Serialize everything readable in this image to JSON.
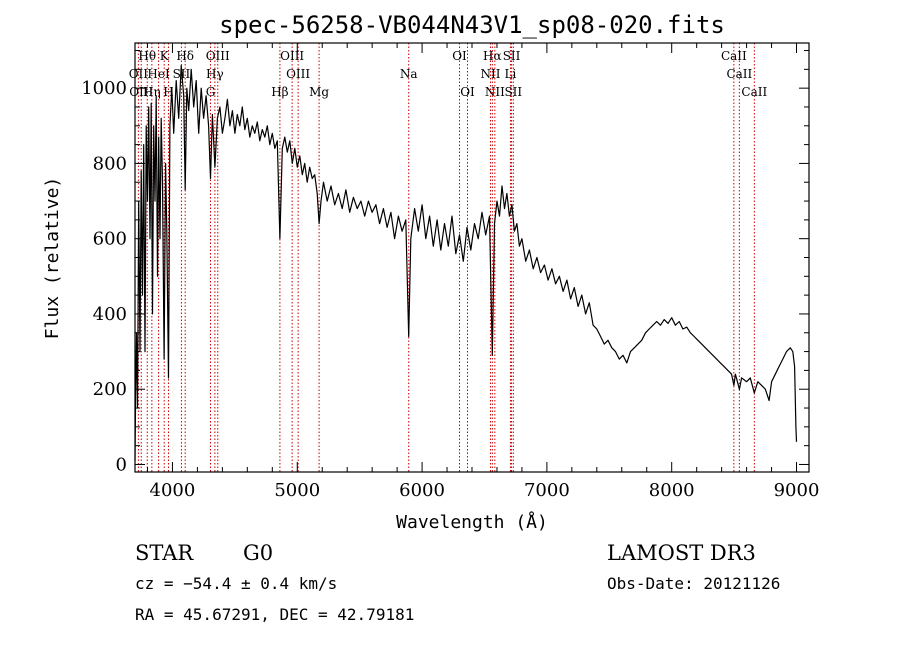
{
  "chart_data": {
    "type": "line",
    "title": "spec-56258-VB044N43V1_sp08-020.fits",
    "xlabel": "Wavelength (Å)",
    "ylabel": "Flux (relative)",
    "xlim": [
      3700,
      9100
    ],
    "ylim": [
      -20,
      1120
    ],
    "xticks": [
      4000,
      5000,
      6000,
      7000,
      8000,
      9000
    ],
    "xtick_labels": [
      "4000",
      "5000",
      "6000",
      "7000",
      "8000",
      "9000"
    ],
    "yticks": [
      0,
      200,
      400,
      600,
      800,
      1000
    ],
    "ytick_labels": [
      "0",
      "200",
      "400",
      "600",
      "800",
      "1000"
    ],
    "line_color": "#000000",
    "marker_color": "#cc0000",
    "series": [
      {
        "name": "flux",
        "points": [
          [
            3700,
            10
          ],
          [
            3705,
            180
          ],
          [
            3712,
            350
          ],
          [
            3720,
            150
          ],
          [
            3730,
            700
          ],
          [
            3740,
            300
          ],
          [
            3750,
            780
          ],
          [
            3760,
            450
          ],
          [
            3770,
            850
          ],
          [
            3780,
            300
          ],
          [
            3790,
            900
          ],
          [
            3800,
            700
          ],
          [
            3810,
            950
          ],
          [
            3820,
            600
          ],
          [
            3830,
            960
          ],
          [
            3840,
            400
          ],
          [
            3850,
            900
          ],
          [
            3860,
            700
          ],
          [
            3870,
            980
          ],
          [
            3880,
            500
          ],
          [
            3890,
            870
          ],
          [
            3900,
            600
          ],
          [
            3910,
            920
          ],
          [
            3920,
            750
          ],
          [
            3933,
            280
          ],
          [
            3945,
            800
          ],
          [
            3955,
            620
          ],
          [
            3968,
            230
          ],
          [
            3980,
            900
          ],
          [
            3995,
            1000
          ],
          [
            4010,
            880
          ],
          [
            4030,
            1020
          ],
          [
            4050,
            920
          ],
          [
            4070,
            1060
          ],
          [
            4090,
            980
          ],
          [
            4102,
            730
          ],
          [
            4115,
            1000
          ],
          [
            4130,
            940
          ],
          [
            4150,
            1050
          ],
          [
            4170,
            950
          ],
          [
            4190,
            1020
          ],
          [
            4210,
            880
          ],
          [
            4230,
            1000
          ],
          [
            4250,
            920
          ],
          [
            4270,
            980
          ],
          [
            4290,
            900
          ],
          [
            4305,
            760
          ],
          [
            4320,
            930
          ],
          [
            4340,
            790
          ],
          [
            4360,
            920
          ],
          [
            4380,
            950
          ],
          [
            4400,
            880
          ],
          [
            4420,
            920
          ],
          [
            4440,
            970
          ],
          [
            4460,
            900
          ],
          [
            4480,
            940
          ],
          [
            4500,
            880
          ],
          [
            4520,
            930
          ],
          [
            4540,
            900
          ],
          [
            4560,
            950
          ],
          [
            4580,
            890
          ],
          [
            4600,
            920
          ],
          [
            4620,
            870
          ],
          [
            4640,
            900
          ],
          [
            4660,
            880
          ],
          [
            4680,
            910
          ],
          [
            4700,
            860
          ],
          [
            4720,
            890
          ],
          [
            4740,
            870
          ],
          [
            4760,
            900
          ],
          [
            4780,
            850
          ],
          [
            4800,
            880
          ],
          [
            4820,
            840
          ],
          [
            4840,
            860
          ],
          [
            4861,
            600
          ],
          [
            4880,
            840
          ],
          [
            4900,
            870
          ],
          [
            4920,
            830
          ],
          [
            4940,
            860
          ],
          [
            4960,
            800
          ],
          [
            4980,
            840
          ],
          [
            5000,
            790
          ],
          [
            5020,
            820
          ],
          [
            5040,
            770
          ],
          [
            5060,
            800
          ],
          [
            5080,
            750
          ],
          [
            5100,
            790
          ],
          [
            5120,
            760
          ],
          [
            5140,
            770
          ],
          [
            5160,
            720
          ],
          [
            5175,
            640
          ],
          [
            5190,
            700
          ],
          [
            5210,
            750
          ],
          [
            5240,
            700
          ],
          [
            5270,
            740
          ],
          [
            5300,
            690
          ],
          [
            5330,
            720
          ],
          [
            5360,
            680
          ],
          [
            5390,
            730
          ],
          [
            5420,
            670
          ],
          [
            5450,
            710
          ],
          [
            5480,
            680
          ],
          [
            5510,
            700
          ],
          [
            5540,
            660
          ],
          [
            5570,
            700
          ],
          [
            5600,
            670
          ],
          [
            5630,
            690
          ],
          [
            5660,
            640
          ],
          [
            5690,
            680
          ],
          [
            5720,
            630
          ],
          [
            5750,
            670
          ],
          [
            5780,
            600
          ],
          [
            5810,
            660
          ],
          [
            5840,
            620
          ],
          [
            5870,
            650
          ],
          [
            5893,
            340
          ],
          [
            5910,
            600
          ],
          [
            5940,
            680
          ],
          [
            5970,
            620
          ],
          [
            6000,
            690
          ],
          [
            6030,
            600
          ],
          [
            6060,
            660
          ],
          [
            6090,
            580
          ],
          [
            6120,
            650
          ],
          [
            6150,
            570
          ],
          [
            6180,
            640
          ],
          [
            6210,
            580
          ],
          [
            6240,
            660
          ],
          [
            6270,
            560
          ],
          [
            6300,
            610
          ],
          [
            6330,
            540
          ],
          [
            6360,
            630
          ],
          [
            6390,
            570
          ],
          [
            6420,
            640
          ],
          [
            6450,
            600
          ],
          [
            6480,
            670
          ],
          [
            6510,
            610
          ],
          [
            6540,
            660
          ],
          [
            6563,
            290
          ],
          [
            6580,
            640
          ],
          [
            6600,
            700
          ],
          [
            6620,
            660
          ],
          [
            6640,
            740
          ],
          [
            6660,
            680
          ],
          [
            6680,
            720
          ],
          [
            6700,
            660
          ],
          [
            6720,
            690
          ],
          [
            6740,
            620
          ],
          [
            6760,
            640
          ],
          [
            6780,
            580
          ],
          [
            6800,
            600
          ],
          [
            6830,
            540
          ],
          [
            6860,
            570
          ],
          [
            6890,
            520
          ],
          [
            6920,
            550
          ],
          [
            6950,
            510
          ],
          [
            6980,
            530
          ],
          [
            7010,
            490
          ],
          [
            7040,
            520
          ],
          [
            7070,
            480
          ],
          [
            7100,
            500
          ],
          [
            7130,
            460
          ],
          [
            7160,
            490
          ],
          [
            7190,
            440
          ],
          [
            7220,
            470
          ],
          [
            7250,
            420
          ],
          [
            7280,
            450
          ],
          [
            7310,
            400
          ],
          [
            7340,
            430
          ],
          [
            7370,
            370
          ],
          [
            7400,
            360
          ],
          [
            7430,
            340
          ],
          [
            7460,
            320
          ],
          [
            7490,
            330
          ],
          [
            7520,
            310
          ],
          [
            7550,
            300
          ],
          [
            7580,
            280
          ],
          [
            7610,
            290
          ],
          [
            7640,
            270
          ],
          [
            7670,
            300
          ],
          [
            7700,
            310
          ],
          [
            7730,
            320
          ],
          [
            7760,
            330
          ],
          [
            7790,
            350
          ],
          [
            7820,
            360
          ],
          [
            7850,
            370
          ],
          [
            7880,
            380
          ],
          [
            7910,
            370
          ],
          [
            7940,
            385
          ],
          [
            7970,
            375
          ],
          [
            8000,
            390
          ],
          [
            8030,
            370
          ],
          [
            8060,
            380
          ],
          [
            8090,
            360
          ],
          [
            8120,
            365
          ],
          [
            8150,
            350
          ],
          [
            8180,
            340
          ],
          [
            8210,
            330
          ],
          [
            8240,
            320
          ],
          [
            8270,
            310
          ],
          [
            8300,
            300
          ],
          [
            8330,
            290
          ],
          [
            8360,
            280
          ],
          [
            8390,
            270
          ],
          [
            8420,
            260
          ],
          [
            8450,
            250
          ],
          [
            8480,
            240
          ],
          [
            8498,
            210
          ],
          [
            8510,
            240
          ],
          [
            8542,
            200
          ],
          [
            8560,
            230
          ],
          [
            8600,
            220
          ],
          [
            8630,
            230
          ],
          [
            8662,
            190
          ],
          [
            8690,
            220
          ],
          [
            8720,
            210
          ],
          [
            8750,
            200
          ],
          [
            8780,
            170
          ],
          [
            8800,
            220
          ],
          [
            8830,
            240
          ],
          [
            8860,
            260
          ],
          [
            8890,
            280
          ],
          [
            8920,
            300
          ],
          [
            8950,
            310
          ],
          [
            8970,
            300
          ],
          [
            8985,
            260
          ],
          [
            8995,
            100
          ],
          [
            9000,
            60
          ]
        ]
      }
    ],
    "spectral_lines": [
      {
        "label": "Hθ",
        "wavelength": 3798,
        "row": 0
      },
      {
        "label": "K",
        "wavelength": 3934,
        "row": 0
      },
      {
        "label": "Hδ",
        "wavelength": 4102,
        "row": 0
      },
      {
        "label": "OIII",
        "wavelength": 4363,
        "row": 0
      },
      {
        "label": "OIII",
        "wavelength": 4959,
        "row": 0
      },
      {
        "label": "OI",
        "wavelength": 6300,
        "row": 0
      },
      {
        "label": "Hα",
        "wavelength": 6563,
        "row": 0
      },
      {
        "label": "SII",
        "wavelength": 6717,
        "row": 0
      },
      {
        "label": "CaII",
        "wavelength": 8498,
        "row": 0
      },
      {
        "label": "OII",
        "wavelength": 3727,
        "row": 1
      },
      {
        "label": "HeI",
        "wavelength": 3889,
        "row": 1
      },
      {
        "label": "SII",
        "wavelength": 4072,
        "row": 1
      },
      {
        "label": "Hγ",
        "wavelength": 4340,
        "row": 1
      },
      {
        "label": "OIII",
        "wavelength": 5007,
        "row": 1
      },
      {
        "label": "Na",
        "wavelength": 5893,
        "row": 1
      },
      {
        "label": "NII",
        "wavelength": 6548,
        "row": 1
      },
      {
        "label": "Li",
        "wavelength": 6708,
        "row": 1
      },
      {
        "label": "CaII",
        "wavelength": 8542,
        "row": 1
      },
      {
        "label": "OIII",
        "wavelength": 3750,
        "row": 2
      },
      {
        "label": "Hη",
        "wavelength": 3835,
        "row": 2
      },
      {
        "label": "H",
        "wavelength": 3968,
        "row": 2
      },
      {
        "label": "G",
        "wavelength": 4305,
        "row": 2
      },
      {
        "label": "Hβ",
        "wavelength": 4861,
        "row": 2
      },
      {
        "label": "Mg",
        "wavelength": 5175,
        "row": 2
      },
      {
        "label": "OI",
        "wavelength": 6364,
        "row": 2
      },
      {
        "label": "NII",
        "wavelength": 6583,
        "row": 2
      },
      {
        "label": "SII",
        "wavelength": 6731,
        "row": 2
      },
      {
        "label": "CaII",
        "wavelength": 8662,
        "row": 2
      }
    ]
  },
  "info": {
    "object_class": "STAR",
    "subclass": "G0",
    "survey": "LAMOST DR3",
    "redshift": "cz = −54.4 ± 0.4 km/s",
    "obs_date": "Obs-Date: 20121126",
    "coords": "RA =  45.67291, DEC =  42.79181"
  }
}
